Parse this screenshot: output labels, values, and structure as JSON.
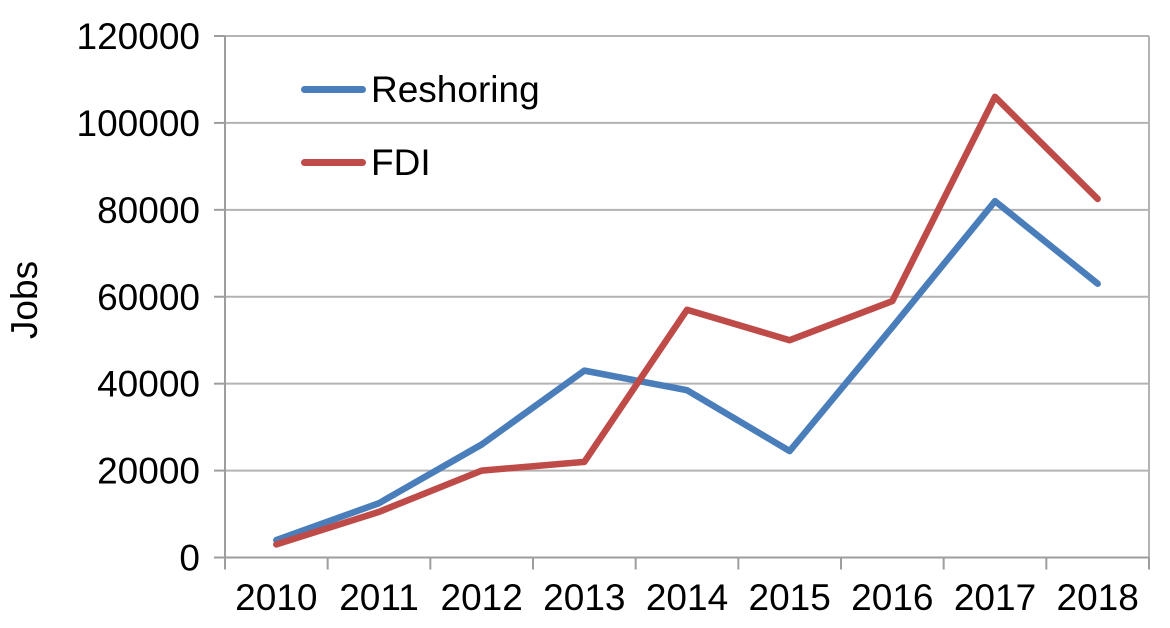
{
  "chart_data": {
    "type": "line",
    "title": "",
    "xlabel": "",
    "ylabel": "Jobs",
    "categories": [
      "2010",
      "2011",
      "2012",
      "2013",
      "2014",
      "2015",
      "2016",
      "2017",
      "2018"
    ],
    "series": [
      {
        "name": "Reshoring",
        "color": "#4A7EBB",
        "values": [
          4000,
          12500,
          26000,
          43000,
          38500,
          24500,
          53000,
          82000,
          63000
        ]
      },
      {
        "name": "FDI",
        "color": "#BE4B48",
        "values": [
          3000,
          10500,
          20000,
          22000,
          57000,
          50000,
          59000,
          106000,
          82500
        ]
      }
    ],
    "ylim": [
      0,
      120000
    ],
    "y_ticks": [
      0,
      20000,
      40000,
      60000,
      80000,
      100000,
      120000
    ],
    "grid": "horizontal",
    "grid_color": "#b3b3b3",
    "axis_color": "#9d9d9d",
    "legend_position": "top-left-inside",
    "text_color": "#000000"
  }
}
